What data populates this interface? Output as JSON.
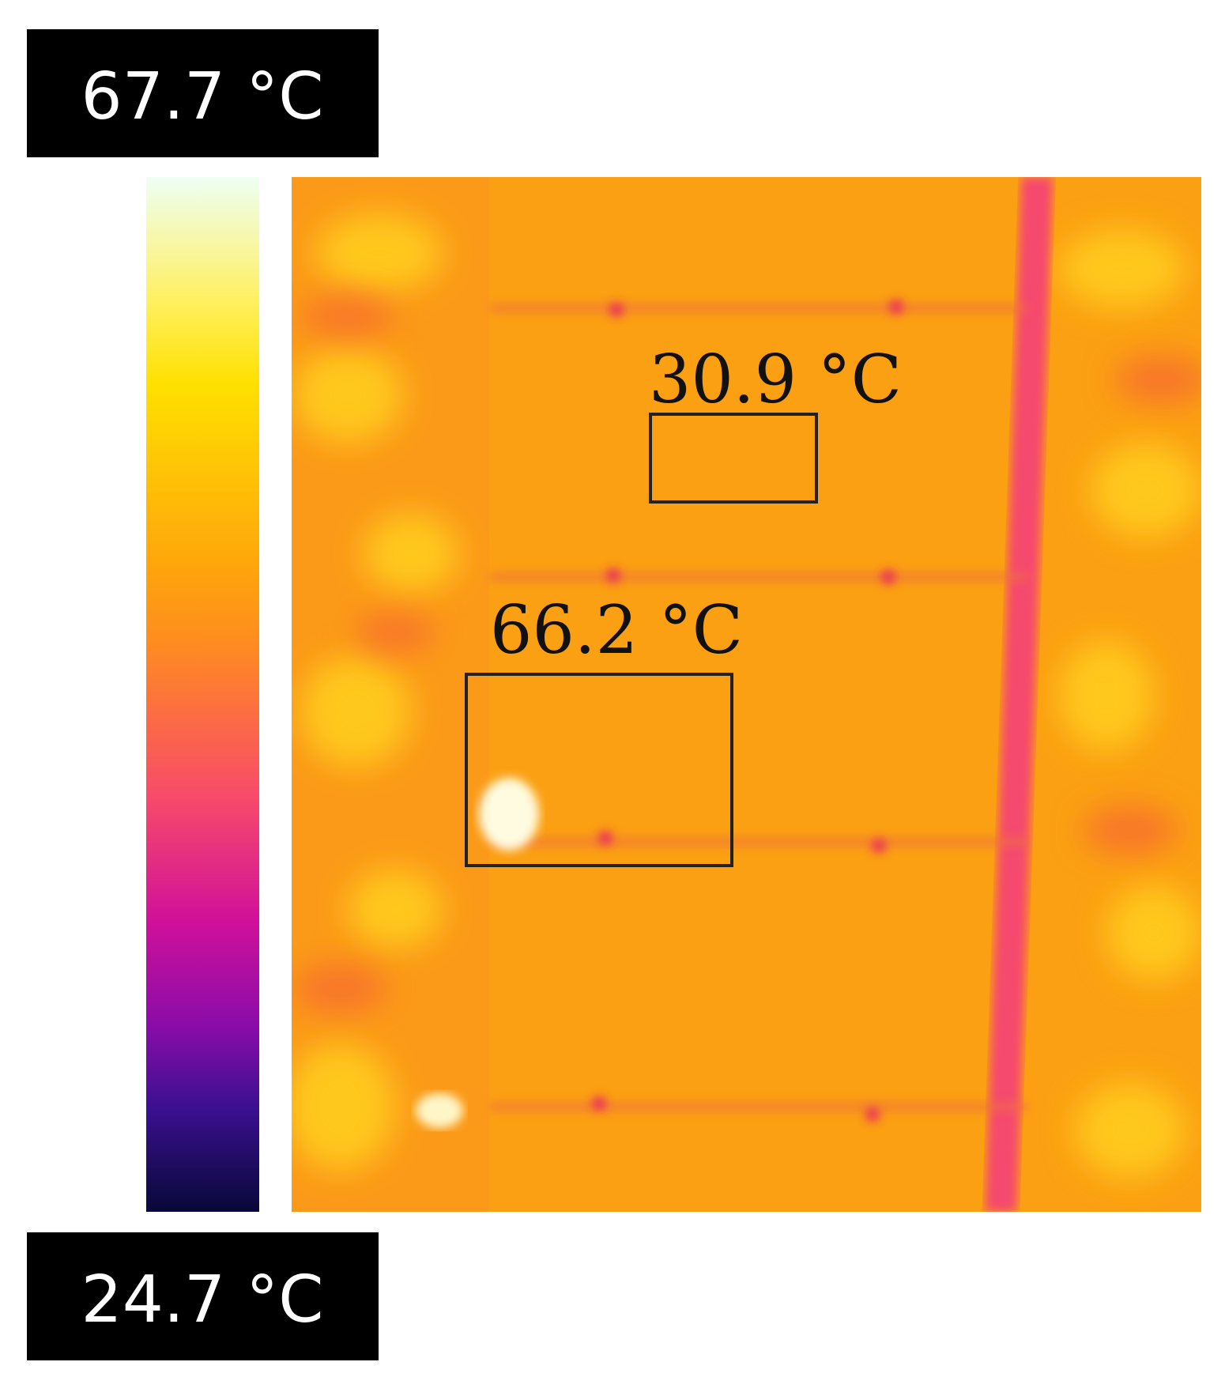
{
  "scale": {
    "max": "67.7 °C",
    "min": "24.7 °C"
  },
  "annotations": [
    {
      "label": "30.9 °C"
    },
    {
      "label": "66.2 °C"
    }
  ]
}
